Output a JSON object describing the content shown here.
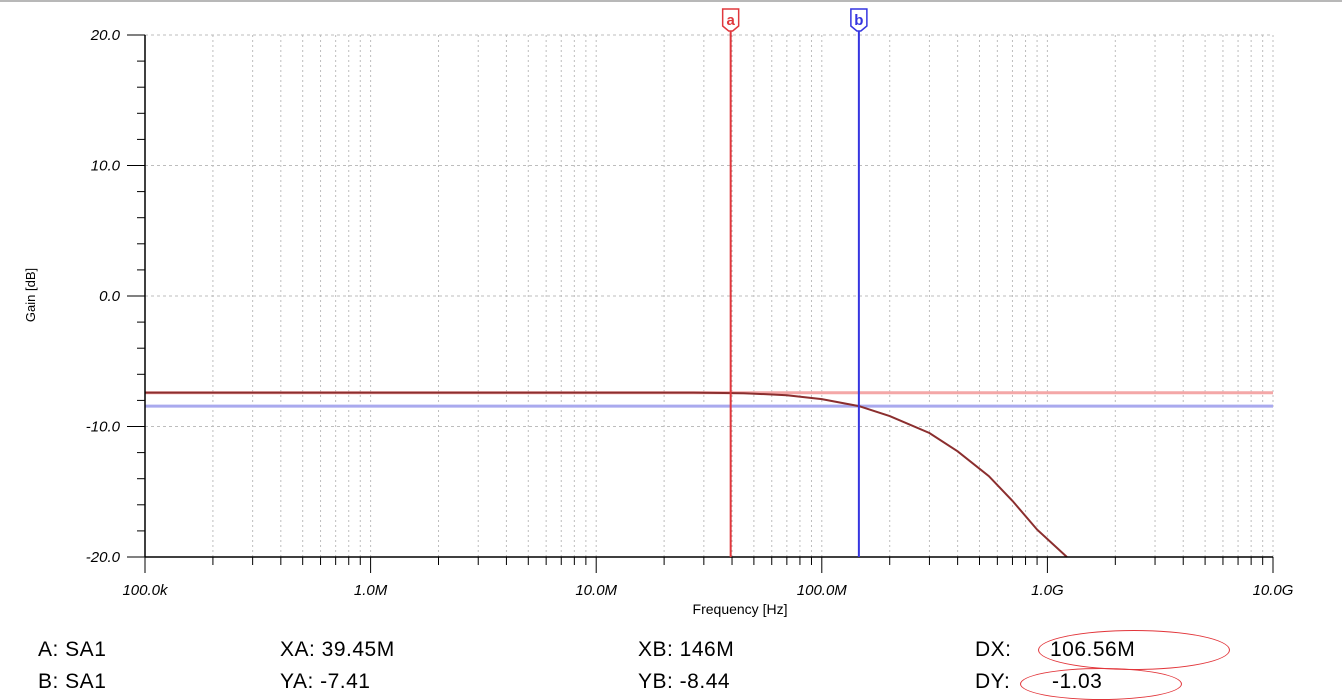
{
  "colors": {
    "cursor_a": "#e0383d",
    "cursor_b": "#3535e0",
    "cursor_a_level": "#f4a7a7",
    "cursor_b_level": "#a9a9ee",
    "curve": "#8b2e2e",
    "grid": "#bdbdbd",
    "highlight": "#e2353a"
  },
  "cursors": {
    "a": {
      "label": "a",
      "freq_hz": 39450000,
      "gain_db": -7.41
    },
    "b": {
      "label": "b",
      "freq_hz": 146000000,
      "gain_db": -8.44
    }
  },
  "readouts": {
    "a_name": "A: SA1",
    "b_name": "B: SA1",
    "xa": "XA: 39.45M",
    "ya": "YA: -7.41",
    "xb": "XB: 146M",
    "yb": "YB: -8.44",
    "dx_label": "DX:",
    "dx_value": "106.56M",
    "dy_label": "DY:",
    "dy_value": "-1.03"
  },
  "chart_data": {
    "type": "line",
    "title": "",
    "xlabel": "Frequency [Hz]",
    "ylabel": "Gain [dB]",
    "xscale": "log",
    "xlim": [
      100000,
      10000000000
    ],
    "ylim": [
      -20,
      20
    ],
    "grid": true,
    "x_tick_values": [
      100000,
      1000000,
      10000000,
      100000000,
      1000000000,
      10000000000
    ],
    "x_tick_labels": [
      "100.0k",
      "1.0M",
      "10.0M",
      "100.0M",
      "1.0G",
      "10.0G"
    ],
    "y_tick_values": [
      20,
      10,
      0,
      -10,
      -20
    ],
    "y_tick_labels": [
      "20.0",
      "10.0",
      "0.0",
      "-10.0",
      "-20.0"
    ],
    "series": [
      {
        "x": [
          100000,
          1000000,
          10000000,
          27000000,
          45000000,
          70000000,
          100000000,
          146000000,
          200000000,
          300000000,
          400000000,
          550000000,
          700000000,
          900000000,
          1220000000
        ],
        "y": [
          -7.4,
          -7.4,
          -7.4,
          -7.4,
          -7.45,
          -7.6,
          -7.9,
          -8.44,
          -9.2,
          -10.5,
          -11.9,
          -13.8,
          -15.7,
          -17.9,
          -20.0
        ]
      }
    ]
  }
}
